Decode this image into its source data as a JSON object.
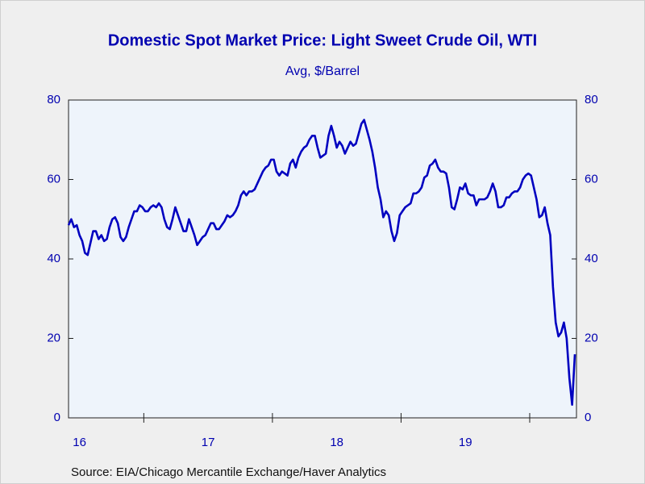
{
  "chart_data": {
    "type": "line",
    "title": "Domestic Spot Market Price: Light Sweet Crude Oil, WTI",
    "subtitle": "Avg, $/Barrel",
    "source": "Source:  EIA/Chicago Mercantile Exchange/Haver Analytics",
    "color": "#0000c0",
    "ylim": [
      0,
      80
    ],
    "yticks": [
      0,
      20,
      40,
      60,
      80
    ],
    "y2lim": [
      0,
      80
    ],
    "y2ticks": [
      0,
      20,
      40,
      60,
      80
    ],
    "categories": [
      null,
      null,
      null,
      null,
      "16",
      null,
      null,
      null,
      null,
      null,
      null,
      null,
      null,
      null,
      null,
      null,
      null,
      null,
      null,
      null,
      null,
      null,
      null,
      null,
      null,
      null,
      null,
      null,
      null,
      null,
      null,
      null,
      null,
      null,
      null,
      null,
      null,
      null,
      null,
      null,
      null,
      null,
      null,
      null,
      null,
      null,
      null,
      null,
      null,
      null,
      null,
      "17",
      null,
      null,
      null,
      null,
      null,
      null,
      null,
      null,
      null,
      null,
      null,
      null,
      null,
      null,
      null,
      null,
      null,
      null,
      null,
      null,
      null,
      null,
      null,
      null,
      null,
      null,
      null,
      null,
      null,
      null,
      null,
      null,
      null,
      null,
      null,
      null,
      null,
      null,
      null,
      null,
      null,
      null,
      null,
      null,
      null,
      null,
      "18",
      null,
      null,
      null,
      null,
      null,
      null,
      null,
      null,
      null,
      null,
      null,
      null,
      null,
      null,
      null,
      null,
      null,
      null,
      null,
      null,
      null,
      null,
      null,
      null,
      null,
      null,
      null,
      null,
      null,
      null,
      null,
      null,
      null,
      null,
      null,
      null,
      null,
      null,
      null,
      null,
      null,
      null,
      null,
      null,
      null,
      null,
      "19",
      null,
      null,
      null,
      null,
      null,
      null,
      null,
      null,
      null,
      null,
      null,
      null,
      null,
      null,
      null,
      null,
      null,
      null,
      null,
      null,
      null,
      null,
      null,
      null,
      null,
      null,
      null,
      null,
      null,
      null,
      null,
      null,
      null,
      null,
      null,
      null,
      null,
      null,
      null,
      null
    ],
    "values": [
      48.5,
      50,
      48,
      48.5,
      46,
      44.5,
      41.5,
      41,
      44,
      47,
      47,
      45,
      46,
      44.5,
      45,
      48,
      50,
      50.5,
      49,
      45.5,
      44.5,
      45.5,
      48,
      50,
      52,
      52,
      53.5,
      53,
      52,
      52,
      53,
      53.5,
      53,
      54,
      53,
      50,
      48,
      47.5,
      50,
      53,
      51,
      49,
      47,
      47,
      50,
      48,
      46,
      43.5,
      44.5,
      45.5,
      46,
      47.5,
      49,
      49,
      47.5,
      47.5,
      48.5,
      49.5,
      51,
      50.5,
      51,
      52,
      53.5,
      56,
      57,
      56,
      57,
      57,
      57.5,
      59,
      60.5,
      62,
      63,
      63.5,
      65,
      65,
      62,
      61,
      62,
      61.5,
      61,
      64,
      65,
      63,
      65.5,
      67,
      68,
      68.5,
      70,
      71,
      71,
      68,
      65.5,
      66,
      66.5,
      71,
      73.5,
      71,
      68,
      69.5,
      68.5,
      66.5,
      68,
      69.5,
      68.5,
      69,
      71.5,
      74,
      75,
      72.5,
      70,
      67,
      63,
      58,
      55,
      50.5,
      52,
      51,
      47,
      44.5,
      46.5,
      51,
      52,
      53,
      53.5,
      54,
      56.5,
      56.5,
      57,
      58,
      60.5,
      61,
      63.5,
      64,
      65,
      63,
      62,
      62,
      61.5,
      58,
      53,
      52.5,
      55,
      58,
      57.5,
      59,
      56.5,
      56,
      56,
      53.5,
      55,
      55,
      55,
      55.5,
      57,
      59,
      57,
      53,
      53,
      53.5,
      55.5,
      55.5,
      56.5,
      57,
      57,
      58,
      60,
      61,
      61.5,
      61,
      58,
      55,
      50.5,
      51,
      53,
      49,
      46,
      33,
      24,
      20.5,
      21.5,
      24,
      20,
      10,
      3.3,
      16
    ]
  }
}
